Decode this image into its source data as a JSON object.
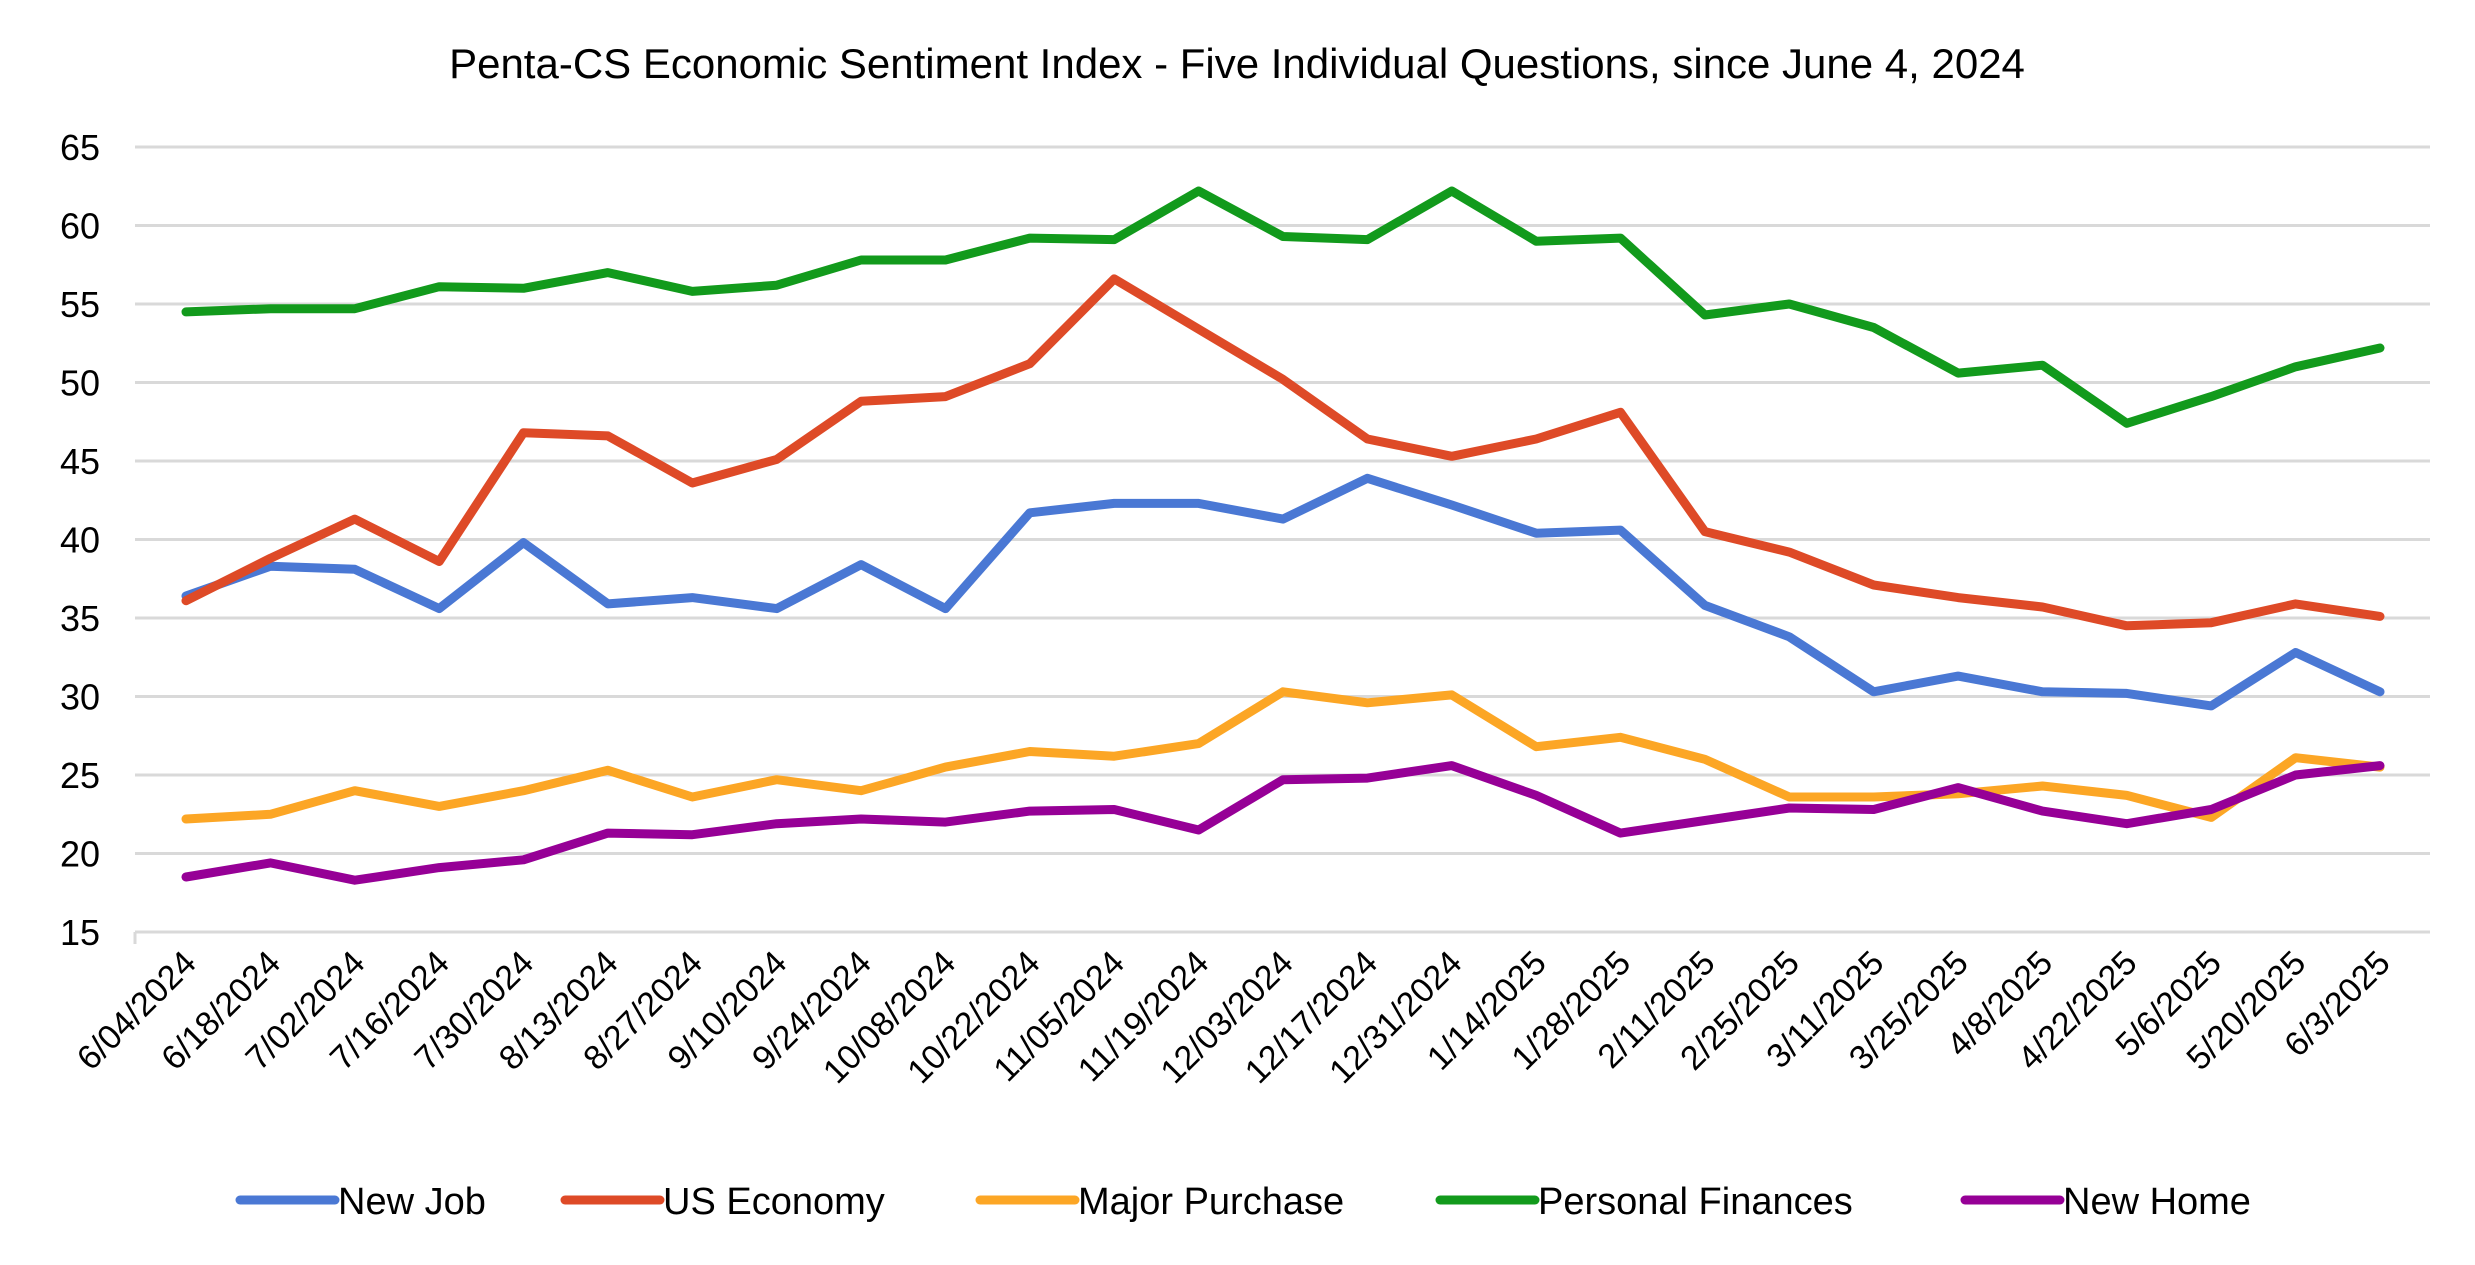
{
  "chart_data": {
    "type": "line",
    "title": "Penta-CS Economic Sentiment Index - Five Individual Questions, since June 4, 2024",
    "xlabel": "",
    "ylabel": "",
    "ylim": [
      15,
      65
    ],
    "yticks": [
      15,
      20,
      25,
      30,
      35,
      40,
      45,
      50,
      55,
      60,
      65
    ],
    "grid": true,
    "legend_position": "bottom",
    "categories": [
      "6/04/2024",
      "6/18/2024",
      "7/02/2024",
      "7/16/2024",
      "7/30/2024",
      "8/13/2024",
      "8/27/2024",
      "9/10/2024",
      "9/24/2024",
      "10/08/2024",
      "10/22/2024",
      "11/05/2024",
      "11/19/2024",
      "12/03/2024",
      "12/17/2024",
      "12/31/2024",
      "1/14/2025",
      "1/28/2025",
      "2/11/2025",
      "2/25/2025",
      "3/11/2025",
      "3/25/2025",
      "4/8/2025",
      "4/22/2025",
      "5/6/2025",
      "5/20/2025",
      "6/3/2025"
    ],
    "series": [
      {
        "name": "New Job",
        "color": "#4a78d4",
        "values": [
          36.4,
          38.3,
          38.1,
          35.6,
          39.8,
          35.9,
          36.3,
          35.6,
          38.4,
          35.6,
          41.7,
          42.3,
          42.3,
          41.3,
          43.9,
          42.2,
          40.4,
          40.6,
          35.8,
          33.8,
          30.3,
          31.3,
          30.3,
          30.2,
          29.4,
          32.8,
          30.3
        ]
      },
      {
        "name": "US Economy",
        "color": "#de4a27",
        "values": [
          36.1,
          38.8,
          41.3,
          38.6,
          46.8,
          46.6,
          43.6,
          45.1,
          48.8,
          49.1,
          51.2,
          56.6,
          53.4,
          50.2,
          46.4,
          45.3,
          46.4,
          48.1,
          40.5,
          39.2,
          37.1,
          36.3,
          35.7,
          34.5,
          34.7,
          35.9,
          35.1
        ]
      },
      {
        "name": "Major Purchase",
        "color": "#fca625",
        "values": [
          22.2,
          22.5,
          24.0,
          23.0,
          24.0,
          25.3,
          23.6,
          24.7,
          24.0,
          25.5,
          26.5,
          26.2,
          27.0,
          30.3,
          29.6,
          30.1,
          26.8,
          27.4,
          26.0,
          23.6,
          23.6,
          23.8,
          24.3,
          23.7,
          22.3,
          26.1,
          25.5
        ]
      },
      {
        "name": "Personal Finances",
        "color": "#129a1c",
        "values": [
          54.5,
          54.7,
          54.7,
          56.1,
          56.0,
          57.0,
          55.8,
          56.2,
          57.8,
          57.8,
          59.2,
          59.1,
          62.2,
          59.3,
          59.1,
          62.2,
          59.0,
          59.2,
          54.3,
          55.0,
          53.5,
          50.6,
          51.1,
          47.4,
          49.1,
          51.0,
          52.2
        ]
      },
      {
        "name": "New Home",
        "color": "#960096",
        "values": [
          18.5,
          19.4,
          18.3,
          19.1,
          19.6,
          21.3,
          21.2,
          21.9,
          22.2,
          22.0,
          22.7,
          22.8,
          21.5,
          24.7,
          24.8,
          25.6,
          23.7,
          21.3,
          22.1,
          22.9,
          22.8,
          24.2,
          22.7,
          21.9,
          22.8,
          25.0,
          25.6
        ]
      }
    ]
  }
}
